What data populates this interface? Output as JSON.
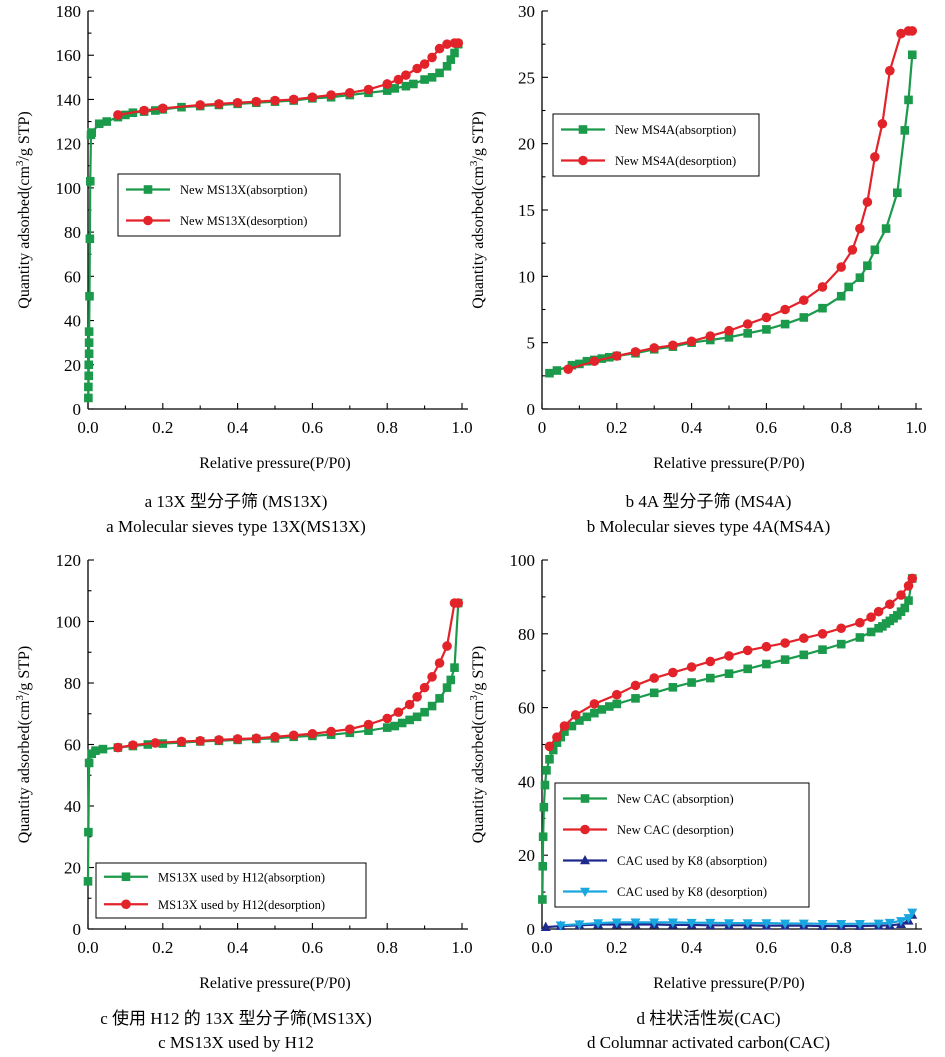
{
  "colors": {
    "green": "#1a9a4a",
    "red": "#e2232a",
    "navy": "#1f2a8c",
    "cyan": "#1aa6df"
  },
  "charts": [
    {
      "id": "a",
      "caption_zh": "a  13X 型分子筛 (MS13X)",
      "caption_en": "a  Molecular sieves type 13X(MS13X)",
      "chart_data": {
        "type": "line",
        "xlabel": "Relative pressure(P/P0)",
        "ylabel": "Quantity adsorbed(cm3/g STP)",
        "xlim": [
          0,
          1.0
        ],
        "ylim": [
          0,
          180
        ],
        "xticks": [
          "0.0",
          "0.2",
          "0.4",
          "0.6",
          "0.8",
          "1.0"
        ],
        "yticks": [
          "0",
          "20",
          "40",
          "60",
          "80",
          "100",
          "120",
          "140",
          "160",
          "180"
        ],
        "legend_position": "center-left",
        "series": [
          {
            "name": "New MS13X(absorption)",
            "color": "#1a9a4a",
            "marker": "square",
            "x": [
              0.001,
              0.001,
              0.002,
              0.002,
              0.003,
              0.003,
              0.003,
              0.004,
              0.005,
              0.006,
              0.008,
              0.01,
              0.03,
              0.05,
              0.08,
              0.1,
              0.12,
              0.15,
              0.18,
              0.2,
              0.25,
              0.3,
              0.35,
              0.4,
              0.45,
              0.5,
              0.55,
              0.6,
              0.65,
              0.7,
              0.75,
              0.8,
              0.82,
              0.85,
              0.87,
              0.9,
              0.92,
              0.94,
              0.96,
              0.97,
              0.98,
              0.99
            ],
            "y": [
              5,
              10,
              15,
              20,
              25,
              30,
              35,
              51,
              77,
              103,
              124,
              125,
              129,
              130,
              132,
              133,
              134,
              134.5,
              135,
              135.5,
              136.5,
              137,
              137.5,
              138,
              138.5,
              139,
              139.5,
              140.5,
              141,
              142,
              143,
              144,
              145,
              146,
              147,
              149,
              150,
              152,
              155,
              158,
              161,
              165
            ]
          },
          {
            "name": "New MS13X(desorption)",
            "color": "#e2232a",
            "marker": "circle",
            "x": [
              0.08,
              0.15,
              0.2,
              0.3,
              0.35,
              0.4,
              0.45,
              0.5,
              0.55,
              0.6,
              0.65,
              0.7,
              0.75,
              0.8,
              0.83,
              0.85,
              0.88,
              0.9,
              0.92,
              0.94,
              0.96,
              0.98,
              0.99
            ],
            "y": [
              133,
              135,
              136,
              137.5,
              138,
              138.5,
              139,
              139.5,
              140,
              141,
              142,
              143,
              144.5,
              147,
              149,
              151,
              154,
              156,
              159,
              163,
              165,
              165.5,
              165.5
            ]
          }
        ]
      }
    },
    {
      "id": "b",
      "caption_zh": "b  4A 型分子筛 (MS4A)",
      "caption_en": "b  Molecular sieves type 4A(MS4A)",
      "chart_data": {
        "type": "line",
        "xlabel": "Relative pressure(P/P0)",
        "ylabel": "Quantity adsorbed(cm3/g STP)",
        "xlim": [
          0,
          1.0
        ],
        "ylim": [
          0,
          30
        ],
        "xticks": [
          "0",
          "0.2",
          "0.4",
          "0.6",
          "0.8",
          "1.0"
        ],
        "yticks": [
          "0",
          "5",
          "10",
          "15",
          "20",
          "25",
          "30"
        ],
        "legend_position": "top-left",
        "series": [
          {
            "name": "New MS4A(absorption)",
            "color": "#1a9a4a",
            "marker": "square",
            "x": [
              0.02,
              0.04,
              0.08,
              0.1,
              0.12,
              0.14,
              0.16,
              0.18,
              0.2,
              0.25,
              0.3,
              0.35,
              0.4,
              0.45,
              0.5,
              0.55,
              0.6,
              0.65,
              0.7,
              0.75,
              0.8,
              0.82,
              0.85,
              0.87,
              0.89,
              0.92,
              0.95,
              0.97,
              0.98,
              0.99
            ],
            "y": [
              2.7,
              2.9,
              3.3,
              3.4,
              3.6,
              3.7,
              3.8,
              3.9,
              4.0,
              4.2,
              4.5,
              4.7,
              5.0,
              5.2,
              5.4,
              5.7,
              6.0,
              6.4,
              6.9,
              7.6,
              8.5,
              9.2,
              9.9,
              10.8,
              12.0,
              13.6,
              16.3,
              21.0,
              23.3,
              26.7
            ]
          },
          {
            "name": "New MS4A(desorption)",
            "color": "#e2232a",
            "marker": "circle",
            "x": [
              0.07,
              0.14,
              0.2,
              0.25,
              0.3,
              0.35,
              0.4,
              0.45,
              0.5,
              0.55,
              0.6,
              0.65,
              0.7,
              0.75,
              0.8,
              0.83,
              0.85,
              0.87,
              0.89,
              0.91,
              0.93,
              0.96,
              0.98,
              0.99
            ],
            "y": [
              3.0,
              3.6,
              4.0,
              4.3,
              4.6,
              4.8,
              5.1,
              5.5,
              5.9,
              6.4,
              6.9,
              7.5,
              8.2,
              9.2,
              10.7,
              12.0,
              13.6,
              15.6,
              19.0,
              21.5,
              25.5,
              28.3,
              28.5,
              28.5
            ]
          }
        ]
      }
    },
    {
      "id": "c",
      "caption_zh": "c  使用 H12 的 13X 型分子筛(MS13X)",
      "caption_en": "c  MS13X used by H12",
      "chart_data": {
        "type": "line",
        "xlabel": "Relative pressure(P/P0)",
        "ylabel": "Quantity adsorbed(cm3/g STP)",
        "xlim": [
          0,
          1.0
        ],
        "ylim": [
          0,
          120
        ],
        "xticks": [
          "0.0",
          "0.2",
          "0.4",
          "0.6",
          "0.8",
          "1.0"
        ],
        "yticks": [
          "0",
          "20",
          "40",
          "60",
          "80",
          "100",
          "120"
        ],
        "legend_position": "bottom-left",
        "series": [
          {
            "name": "MS13X used by H12(absorption)",
            "color": "#1a9a4a",
            "marker": "square",
            "x": [
              0.0,
              0.001,
              0.003,
              0.01,
              0.02,
              0.04,
              0.08,
              0.12,
              0.16,
              0.2,
              0.25,
              0.3,
              0.35,
              0.4,
              0.45,
              0.5,
              0.55,
              0.6,
              0.65,
              0.7,
              0.75,
              0.8,
              0.82,
              0.84,
              0.86,
              0.88,
              0.9,
              0.92,
              0.94,
              0.96,
              0.97,
              0.98,
              0.99
            ],
            "y": [
              15.5,
              31.5,
              54,
              57,
              58,
              58.5,
              59,
              59.5,
              60,
              60.3,
              60.6,
              61,
              61.2,
              61.5,
              61.8,
              62,
              62.5,
              62.8,
              63.2,
              63.8,
              64.5,
              65.5,
              66,
              67,
              68,
              69,
              70.5,
              72.5,
              75,
              78.5,
              81,
              85,
              106
            ]
          },
          {
            "name": "MS13X used by H12(desorption)",
            "color": "#e2232a",
            "marker": "circle",
            "x": [
              0.08,
              0.12,
              0.18,
              0.25,
              0.3,
              0.35,
              0.4,
              0.45,
              0.5,
              0.55,
              0.6,
              0.65,
              0.7,
              0.75,
              0.8,
              0.83,
              0.86,
              0.88,
              0.9,
              0.92,
              0.94,
              0.96,
              0.98,
              0.99
            ],
            "y": [
              59,
              59.8,
              60.5,
              61,
              61.2,
              61.5,
              61.8,
              62,
              62.5,
              63,
              63.5,
              64.2,
              65,
              66.5,
              68.5,
              70.5,
              73,
              75.5,
              78.5,
              82,
              86.5,
              92,
              106,
              106
            ]
          }
        ]
      }
    },
    {
      "id": "d",
      "caption_zh": "d  柱状活性炭(CAC)",
      "caption_en": "d  Columnar activated carbon(CAC)",
      "chart_data": {
        "type": "line",
        "xlabel": "Relative pressure(P/P0)",
        "ylabel": "Quantity adsorbed(cm3/g STP)",
        "xlim": [
          0,
          1.0
        ],
        "ylim": [
          0,
          100
        ],
        "xticks": [
          "0.0",
          "0.2",
          "0.4",
          "0.6",
          "0.8",
          "1.0"
        ],
        "yticks": [
          "0",
          "20",
          "40",
          "60",
          "80",
          "100"
        ],
        "legend_position": "bottom-left",
        "series": [
          {
            "name": "New CAC (absorption)",
            "color": "#1a9a4a",
            "marker": "square",
            "x": [
              0.001,
              0.002,
              0.003,
              0.005,
              0.008,
              0.012,
              0.02,
              0.03,
              0.04,
              0.05,
              0.06,
              0.08,
              0.1,
              0.12,
              0.14,
              0.16,
              0.18,
              0.2,
              0.25,
              0.3,
              0.35,
              0.4,
              0.45,
              0.5,
              0.55,
              0.6,
              0.65,
              0.7,
              0.75,
              0.8,
              0.85,
              0.88,
              0.9,
              0.91,
              0.92,
              0.93,
              0.94,
              0.95,
              0.96,
              0.97,
              0.98,
              0.99
            ],
            "y": [
              8,
              17,
              25,
              33,
              39,
              43,
              46,
              48.5,
              50.5,
              52,
              53.5,
              55,
              56.5,
              57.5,
              58.5,
              59.5,
              60.3,
              61,
              62.5,
              64,
              65.5,
              66.8,
              68,
              69.2,
              70.5,
              71.8,
              73,
              74.3,
              75.7,
              77.2,
              79,
              80.5,
              81.5,
              82,
              82.8,
              83.5,
              84.2,
              85,
              86,
              87,
              89,
              95
            ]
          },
          {
            "name": "New CAC (desorption)",
            "color": "#e2232a",
            "marker": "circle",
            "x": [
              0.02,
              0.04,
              0.06,
              0.09,
              0.14,
              0.2,
              0.25,
              0.3,
              0.35,
              0.4,
              0.45,
              0.5,
              0.55,
              0.6,
              0.65,
              0.7,
              0.75,
              0.8,
              0.85,
              0.88,
              0.9,
              0.93,
              0.96,
              0.98,
              0.99
            ],
            "y": [
              49.5,
              52,
              55,
              58,
              61,
              63.5,
              66,
              68,
              69.5,
              71,
              72.5,
              74,
              75.5,
              76.5,
              77.5,
              78.8,
              80,
              81.5,
              83,
              84.5,
              86,
              88,
              90.5,
              93,
              95
            ]
          },
          {
            "name": "CAC used by K8 (absorption)",
            "color": "#1f2a8c",
            "marker": "triangle-up",
            "x": [
              0.01,
              0.05,
              0.1,
              0.15,
              0.2,
              0.25,
              0.3,
              0.35,
              0.4,
              0.45,
              0.5,
              0.55,
              0.6,
              0.65,
              0.7,
              0.75,
              0.8,
              0.85,
              0.9,
              0.93,
              0.96,
              0.98,
              0.99
            ],
            "y": [
              0.5,
              0.8,
              1.0,
              1.2,
              1.2,
              1.2,
              1.2,
              1.1,
              1.1,
              1.0,
              1.0,
              1.0,
              0.9,
              0.9,
              0.9,
              0.8,
              0.8,
              0.8,
              0.9,
              1.0,
              1.3,
              2.2,
              3.8
            ]
          },
          {
            "name": "CAC used by K8 (desorption)",
            "color": "#1aa6df",
            "marker": "triangle-down",
            "x": [
              0.05,
              0.1,
              0.15,
              0.2,
              0.25,
              0.3,
              0.35,
              0.4,
              0.45,
              0.5,
              0.55,
              0.6,
              0.65,
              0.7,
              0.75,
              0.8,
              0.85,
              0.9,
              0.93,
              0.96,
              0.98,
              0.99
            ],
            "y": [
              1.0,
              1.3,
              1.6,
              1.8,
              1.8,
              1.8,
              1.8,
              1.7,
              1.7,
              1.6,
              1.6,
              1.6,
              1.5,
              1.5,
              1.4,
              1.4,
              1.4,
              1.5,
              1.7,
              2.2,
              3.0,
              4.5
            ]
          }
        ]
      }
    }
  ]
}
